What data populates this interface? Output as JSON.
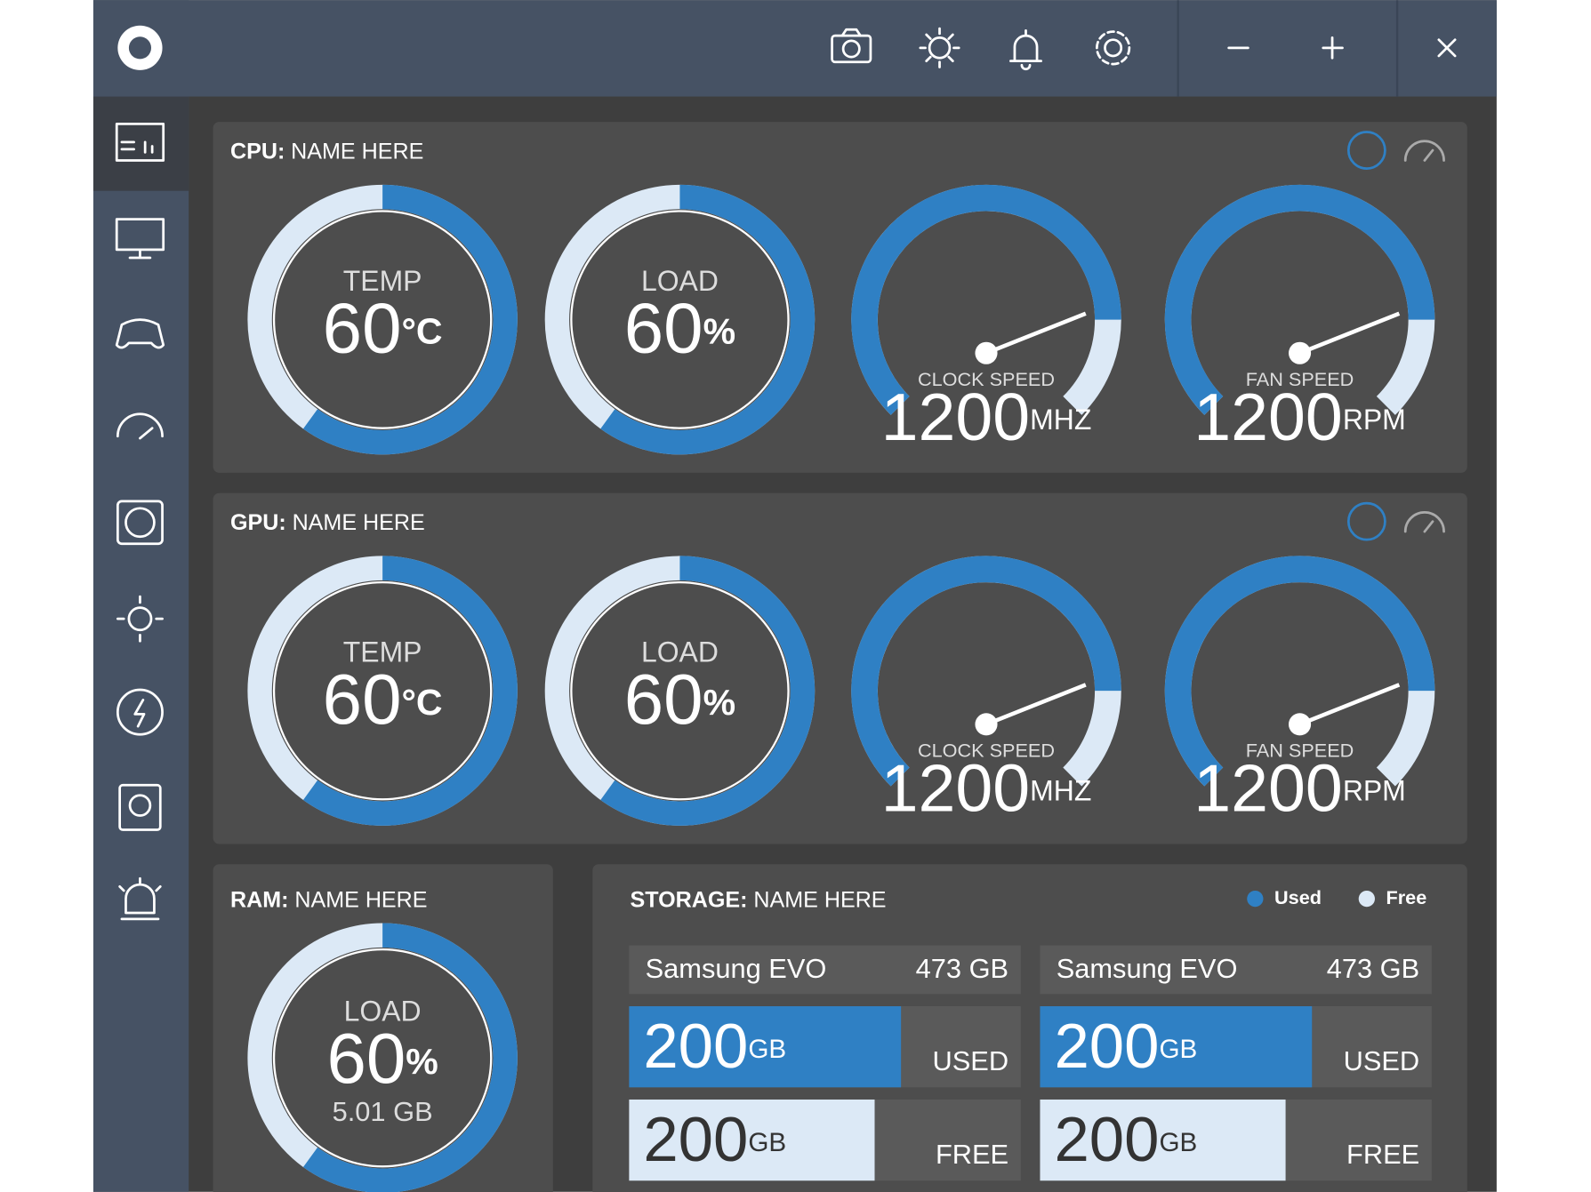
{
  "panels": [
    {
      "label": "CPU:",
      "name": "NAME HERE",
      "rings": [
        {
          "label": "TEMP",
          "value": 60,
          "unit": "°C"
        },
        {
          "label": "LOAD",
          "value": 60,
          "unit": "%"
        }
      ],
      "gauges": [
        {
          "label": "CLOCK SPEED",
          "value": 1200,
          "unit": "MHZ"
        },
        {
          "label": "FAN SPEED",
          "value": 1200,
          "unit": "RPM"
        }
      ]
    },
    {
      "label": "GPU:",
      "name": "NAME HERE",
      "rings": [
        {
          "label": "TEMP",
          "value": 60,
          "unit": "°C"
        },
        {
          "label": "LOAD",
          "value": 60,
          "unit": "%"
        }
      ],
      "gauges": [
        {
          "label": "CLOCK SPEED",
          "value": 1200,
          "unit": "MHZ"
        },
        {
          "label": "FAN SPEED",
          "value": 1200,
          "unit": "RPM"
        }
      ]
    }
  ],
  "ram": {
    "label": "RAM:",
    "name": "NAME HERE",
    "load": {
      "label": "LOAD",
      "value": 60,
      "unit": "%",
      "detail": "5.01 GB"
    }
  },
  "storage": {
    "label": "STORAGE:",
    "name": "NAME HERE",
    "legend": [
      "Used",
      "Free"
    ],
    "drives": [
      {
        "name": "Samsung EVO",
        "size": "473 GB",
        "used": {
          "value": 200,
          "unit": "GB",
          "label": "USED"
        },
        "free": {
          "value": 200,
          "unit": "GB",
          "label": "FREE"
        }
      },
      {
        "name": "Samsung EVO",
        "size": "473 GB",
        "used": {
          "value": 200,
          "unit": "GB",
          "label": "USED"
        },
        "free": {
          "value": 200,
          "unit": "GB",
          "label": "FREE"
        }
      }
    ]
  }
}
